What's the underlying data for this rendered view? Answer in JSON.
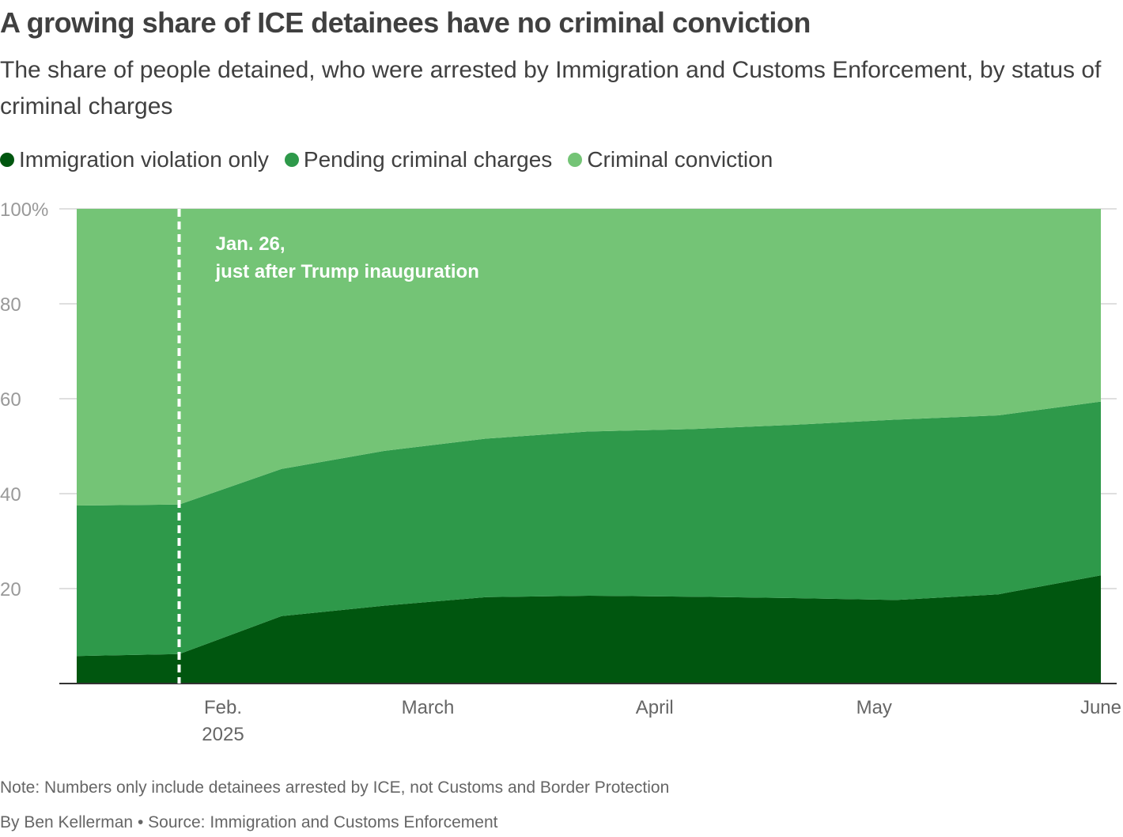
{
  "title": "A growing share of ICE detainees have no criminal conviction",
  "subtitle": "The share of people detained, who were arrested by Immigration and Customs Enforcement, by status of criminal charges",
  "note": "Note: Numbers only include detainees arrested by ICE, not Customs and Border Protection",
  "byline": {
    "author": "By Ben Kellerman",
    "separator": "•",
    "source": "Source: Immigration and Customs Enforcement"
  },
  "colors": {
    "immigration_only": "#00560f",
    "pending": "#2e994a",
    "conviction": "#74c476",
    "grid": "#cccccc",
    "axis_text": "#999999",
    "annotation": "#ffffff"
  },
  "chart_data": {
    "type": "area",
    "stacked": true,
    "x": [
      "2025-01-12",
      "2025-01-26",
      "2025-02-09",
      "2025-02-23",
      "2025-03-09",
      "2025-03-23",
      "2025-04-06",
      "2025-04-20",
      "2025-05-04",
      "2025-05-18",
      "2025-06-01"
    ],
    "series": [
      {
        "name": "Immigration violation only",
        "values": [
          5.8,
          6.2,
          14.2,
          16.4,
          18.2,
          18.5,
          18.3,
          18.0,
          17.6,
          18.8,
          22.8
        ]
      },
      {
        "name": "Pending criminal charges",
        "values": [
          31.7,
          31.5,
          31.0,
          32.6,
          33.4,
          34.6,
          35.3,
          36.5,
          38.0,
          37.7,
          36.6
        ]
      },
      {
        "name": "Criminal conviction",
        "values": [
          62.5,
          62.3,
          54.8,
          51.0,
          48.4,
          46.9,
          46.4,
          45.5,
          44.4,
          43.5,
          40.6
        ]
      }
    ],
    "ylim": [
      0,
      100
    ],
    "y_ticks": [
      {
        "value": 100,
        "label": "100%"
      },
      {
        "value": 80,
        "label": "80"
      },
      {
        "value": 60,
        "label": "60"
      },
      {
        "value": 40,
        "label": "40"
      },
      {
        "value": 20,
        "label": "20"
      }
    ],
    "x_ticks": [
      {
        "date": "2025-02-01",
        "label": "Feb.",
        "sublabel": "2025"
      },
      {
        "date": "2025-03-01",
        "label": "March",
        "sublabel": ""
      },
      {
        "date": "2025-04-01",
        "label": "April",
        "sublabel": ""
      },
      {
        "date": "2025-05-01",
        "label": "May",
        "sublabel": ""
      },
      {
        "date": "2025-06-01",
        "label": "June",
        "sublabel": ""
      }
    ],
    "xlim": [
      "2025-01-12",
      "2025-06-01"
    ],
    "annotation": {
      "date": "2025-01-26",
      "line1": "Jan. 26,",
      "line2": "just after Trump inauguration"
    },
    "legend_position": "top-left",
    "grid": true
  }
}
